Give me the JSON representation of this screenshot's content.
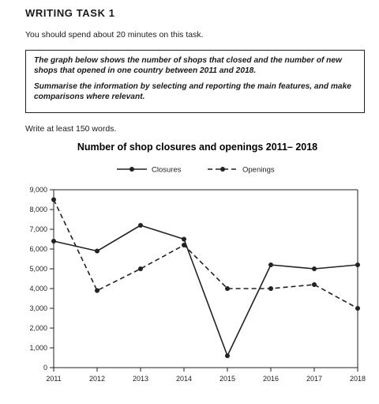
{
  "heading": "WRITING TASK 1",
  "intro": "You should spend about 20 minutes on this task.",
  "task": {
    "line1": "The graph below shows the number of shops that closed and the number of new shops that opened in one country between 2011 and 2018.",
    "line2": "Summarise the information by selecting and reporting the main features, and make comparisons where relevant."
  },
  "word_count_note": "Write at least 150 words.",
  "chart_data": {
    "type": "line",
    "title": "Number of shop closures and openings 2011– 2018",
    "x": [
      "2011",
      "2012",
      "2013",
      "2014",
      "2015",
      "2016",
      "2017",
      "2018"
    ],
    "ylim": [
      0,
      9000
    ],
    "yticks": [
      "0",
      "1,000",
      "2,000",
      "3,000",
      "4,000",
      "5,000",
      "6,000",
      "7,000",
      "8,000",
      "9,000"
    ],
    "series": [
      {
        "name": "Closures",
        "style": "solid",
        "values": [
          6400,
          5900,
          7200,
          6500,
          600,
          5200,
          5000,
          5200
        ]
      },
      {
        "name": "Openings",
        "style": "dashed",
        "values": [
          8500,
          3900,
          5000,
          6200,
          4000,
          4000,
          4200,
          3000
        ]
      }
    ],
    "legend_position": "top-center",
    "grid": false,
    "line_color": "#222222"
  }
}
